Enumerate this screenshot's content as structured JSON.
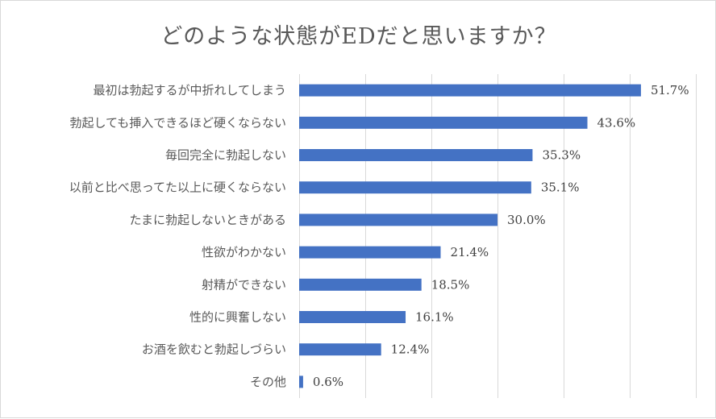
{
  "chart_data": {
    "type": "bar",
    "orientation": "horizontal",
    "title": "どのような状態がEDだと思いますか？",
    "categories": [
      "最初は勃起するが中折れしてしまう",
      "勃起しても挿入できるほど硬くならない",
      "毎回完全に勃起しない",
      "以前と比べ思ってた以上に硬くならない",
      "たまに勃起しないときがある",
      "性欲がわかない",
      "射精ができない",
      "性的に興奮しない",
      "お酒を飲むと勃起しづらい",
      "その他"
    ],
    "values": [
      51.7,
      43.6,
      35.3,
      35.1,
      30.0,
      21.4,
      18.5,
      16.1,
      12.4,
      0.6
    ],
    "value_labels": [
      "51.7%",
      "43.6%",
      "35.3%",
      "35.1%",
      "30.0%",
      "21.4%",
      "18.5%",
      "16.1%",
      "12.4%",
      "0.6%"
    ],
    "xlim": [
      0,
      60
    ],
    "grid": "vertical",
    "color": "#4472c4"
  }
}
